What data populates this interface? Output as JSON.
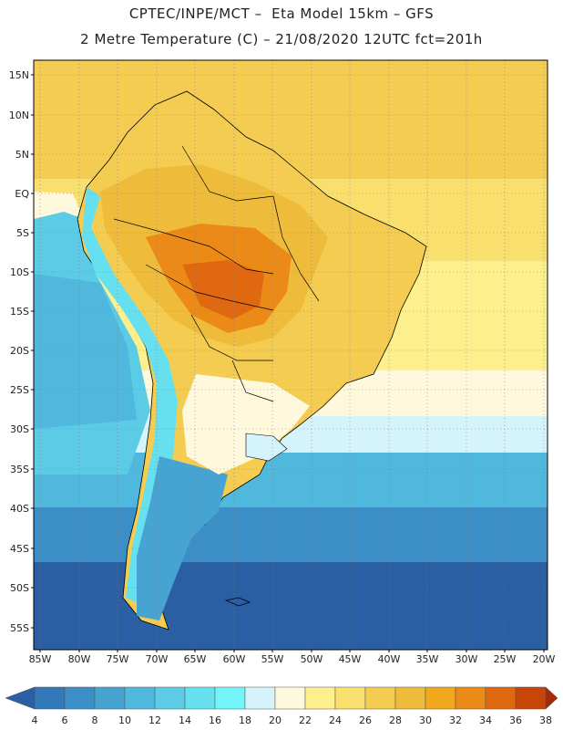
{
  "header": {
    "line1": "CPTEC/INPE/MCT –  Eta Model 15km – GFS",
    "line2": "2 Metre Temperature (C) – 21/08/2020 12UTC fct=201h"
  },
  "latitude_labels": [
    "15N",
    "10N",
    "5N",
    "EQ",
    "5S",
    "10S",
    "15S",
    "20S",
    "25S",
    "30S",
    "35S",
    "40S",
    "45S",
    "50S",
    "55S"
  ],
  "longitude_labels": [
    "85W",
    "80W",
    "75W",
    "70W",
    "65W",
    "60W",
    "55W",
    "50W",
    "45W",
    "40W",
    "35W",
    "30W",
    "25W",
    "20W"
  ],
  "colorbar": {
    "values": [
      "4",
      "6",
      "8",
      "10",
      "12",
      "14",
      "16",
      "18",
      "20",
      "22",
      "24",
      "26",
      "28",
      "30",
      "32",
      "34",
      "36",
      "38"
    ],
    "colors": [
      "#2b5fa3",
      "#3378b8",
      "#3b8fc6",
      "#46a3d2",
      "#50b8dd",
      "#5ccbe6",
      "#66e0ef",
      "#72f4f8",
      "#d4f3fb",
      "#fef8dc",
      "#fdf08c",
      "#f9df6e",
      "#f4cc52",
      "#eebb3a",
      "#f2a81c",
      "#ec8a18",
      "#e06810",
      "#c84508",
      "#a52a0a"
    ]
  }
}
